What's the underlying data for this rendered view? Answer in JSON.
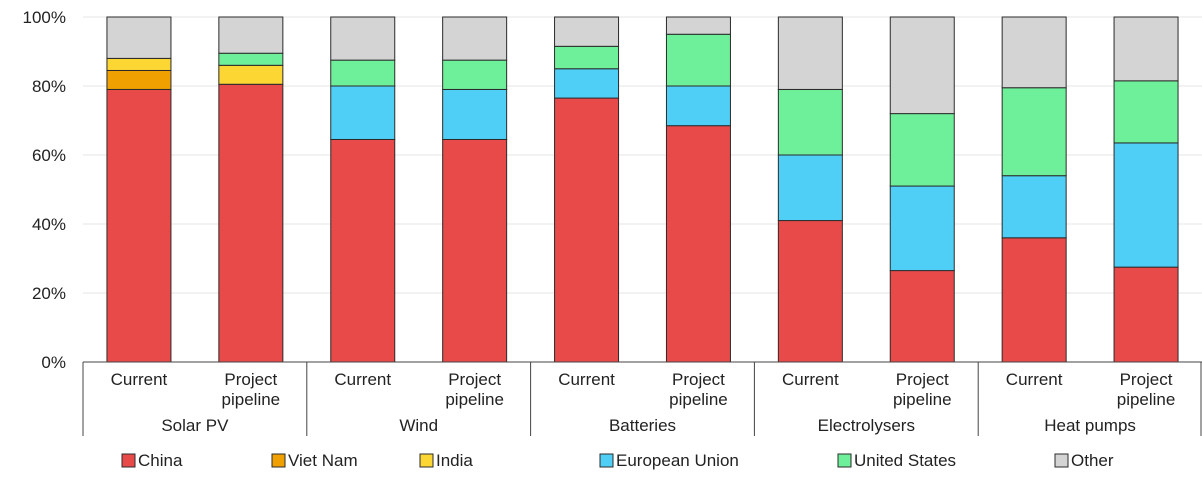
{
  "chart_data": {
    "type": "bar",
    "stacked": true,
    "normalized_percent": true,
    "ylim": [
      0,
      100
    ],
    "yticks": [
      "0%",
      "20%",
      "40%",
      "60%",
      "80%",
      "100%"
    ],
    "groups": [
      {
        "name": "Solar PV",
        "bars": [
          {
            "label": "Current",
            "values": [
              79,
              5.5,
              3.5,
              0,
              0,
              12
            ]
          },
          {
            "label": "Project pipeline",
            "values": [
              80.5,
              0,
              5.5,
              0,
              3.5,
              10.5
            ]
          }
        ]
      },
      {
        "name": "Wind",
        "bars": [
          {
            "label": "Current",
            "values": [
              64.5,
              0,
              0,
              15.5,
              7.5,
              12.5
            ]
          },
          {
            "label": "Project pipeline",
            "values": [
              64.5,
              0,
              0,
              14.5,
              8.5,
              12.5
            ]
          }
        ]
      },
      {
        "name": "Batteries",
        "bars": [
          {
            "label": "Current",
            "values": [
              76.5,
              0,
              0,
              8.5,
              6.5,
              8.5
            ]
          },
          {
            "label": "Project pipeline",
            "values": [
              68.5,
              0,
              0,
              11.5,
              15,
              5
            ]
          }
        ]
      },
      {
        "name": "Electrolysers",
        "bars": [
          {
            "label": "Current",
            "values": [
              41,
              0,
              0,
              19,
              19,
              21
            ]
          },
          {
            "label": "Project pipeline",
            "values": [
              26.5,
              0,
              0,
              24.5,
              21,
              28
            ]
          }
        ]
      },
      {
        "name": "Heat pumps",
        "bars": [
          {
            "label": "Current",
            "values": [
              36,
              0,
              0,
              18,
              25.5,
              20.5
            ]
          },
          {
            "label": "Project pipeline",
            "values": [
              27.5,
              0,
              0,
              36,
              18,
              18.5
            ]
          }
        ]
      }
    ],
    "series": [
      {
        "name": "China",
        "color": "#e84a4a"
      },
      {
        "name": "Viet Nam",
        "color": "#f0a000"
      },
      {
        "name": "India",
        "color": "#fcd733"
      },
      {
        "name": "European Union",
        "color": "#4fcff5"
      },
      {
        "name": "United States",
        "color": "#6ef09a"
      },
      {
        "name": "Other",
        "color": "#d4d4d4"
      }
    ],
    "legend_position": "bottom",
    "grid": true
  }
}
